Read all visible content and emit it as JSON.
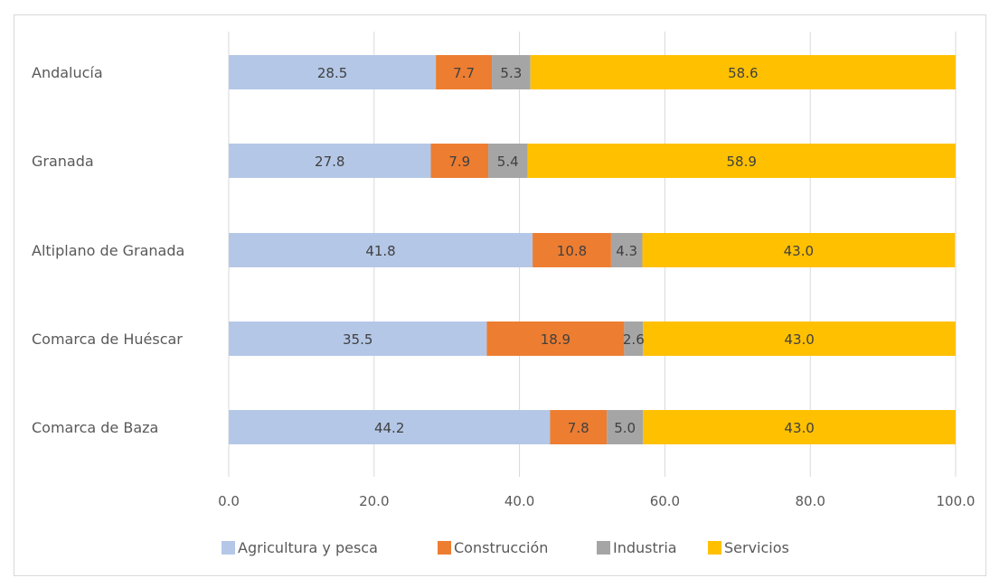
{
  "chart_data": {
    "type": "bar",
    "orientation": "horizontal",
    "stacked": true,
    "categories": [
      "Andalucía",
      "Granada",
      "Altiplano de Granada",
      "Comarca de Huéscar",
      "Comarca de Baza"
    ],
    "series": [
      {
        "name": "Agricultura y pesca",
        "color": "#b4c7e7",
        "values": [
          28.5,
          27.8,
          41.8,
          35.5,
          44.2
        ]
      },
      {
        "name": "Construcción",
        "color": "#ed7d31",
        "values": [
          7.7,
          7.9,
          10.8,
          18.9,
          7.8
        ]
      },
      {
        "name": "Industria",
        "color": "#a5a5a5",
        "values": [
          5.3,
          5.4,
          4.3,
          2.6,
          5.0
        ]
      },
      {
        "name": "Servicios",
        "color": "#ffc000",
        "values": [
          58.6,
          58.9,
          43.0,
          43.0,
          43.0
        ]
      }
    ],
    "xlim": [
      0,
      100
    ],
    "xticks": [
      "0.0",
      "20.0",
      "40.0",
      "60.0",
      "80.0",
      "100.0"
    ],
    "grid": true,
    "legend_position": "bottom",
    "title": "",
    "xlabel": "",
    "ylabel": ""
  }
}
